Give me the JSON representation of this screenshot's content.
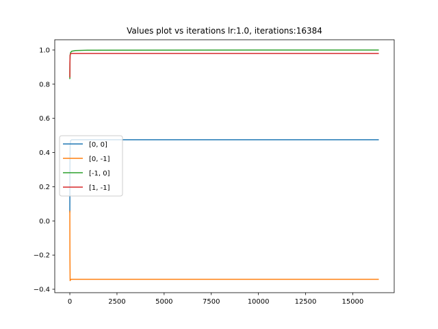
{
  "chart_data": {
    "type": "line",
    "title": "Values plot vs iterations lr:1.0, iterations:16384",
    "xlabel": "",
    "ylabel": "",
    "xlim": [
      -800,
      17200
    ],
    "ylim": [
      -0.42,
      1.06
    ],
    "xticks": [
      0,
      2500,
      5000,
      7500,
      10000,
      12500,
      15000
    ],
    "xtick_labels": [
      "0",
      "2500",
      "5000",
      "7500",
      "10000",
      "12500",
      "15000"
    ],
    "yticks": [
      -0.4,
      -0.2,
      0.0,
      0.2,
      0.4,
      0.6,
      0.8,
      1.0
    ],
    "ytick_labels": [
      "−0.4",
      "−0.2",
      "0.0",
      "0.2",
      "0.4",
      "0.6",
      "0.8",
      "1.0"
    ],
    "grid": false,
    "legend_position": "center-left",
    "series": [
      {
        "name": "[0, 0]",
        "color": "#1f77b4",
        "x": [
          0,
          5,
          15,
          40,
          100,
          200,
          400,
          16384
        ],
        "y": [
          0.05,
          0.3,
          0.44,
          0.47,
          0.475,
          0.475,
          0.475,
          0.475
        ]
      },
      {
        "name": "[0, -1]",
        "color": "#ff7f0e",
        "x": [
          0,
          5,
          15,
          30,
          60,
          150,
          16384
        ],
        "y": [
          0.06,
          -0.2,
          -0.35,
          -0.345,
          -0.342,
          -0.342,
          -0.342
        ]
      },
      {
        "name": "[-1, 0]",
        "color": "#2ca02c",
        "x": [
          0,
          5,
          15,
          40,
          100,
          300,
          1000,
          16384
        ],
        "y": [
          0.83,
          0.92,
          0.97,
          0.985,
          0.993,
          0.997,
          0.999,
          1.0
        ]
      },
      {
        "name": "[1, -1]",
        "color": "#d62728",
        "x": [
          0,
          5,
          15,
          40,
          100,
          300,
          16384
        ],
        "y": [
          0.84,
          0.93,
          0.97,
          0.978,
          0.98,
          0.98,
          0.98
        ]
      }
    ]
  }
}
